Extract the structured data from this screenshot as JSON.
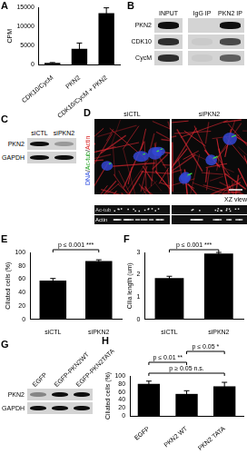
{
  "chart_data": [
    {
      "panel": "A",
      "type": "bar",
      "categories": [
        "CDK10/CycM",
        "PKN2",
        "CDK10/CycM + PKN2"
      ],
      "values": [
        500,
        4200,
        13500
      ],
      "errors": [
        100,
        1500,
        1400
      ],
      "color": "#000000",
      "y_label": "CPM",
      "ylim": [
        0,
        15000
      ],
      "yticks": [
        0,
        5000,
        10000,
        15000
      ],
      "grid": false
    },
    {
      "panel": "E",
      "type": "bar",
      "categories": [
        "siCTL",
        "siPKN2"
      ],
      "values": [
        58,
        87
      ],
      "errors": [
        3,
        2
      ],
      "color": "#000000",
      "y_label": "Ciliated cells (%)",
      "ylim": [
        0,
        100
      ],
      "yticks": [
        0,
        20,
        40,
        60,
        80,
        100
      ],
      "grid": false,
      "annotations": [
        {
          "text": "p ≤ 0.001 ***",
          "from": "siCTL",
          "to": "siPKN2"
        }
      ]
    },
    {
      "panel": "F",
      "type": "bar",
      "categories": [
        "siCTL",
        "siPKN2"
      ],
      "values": [
        1.85,
        2.95
      ],
      "errors": [
        0.08,
        0.05
      ],
      "color": "#000000",
      "y_label": "Cilia length (um)",
      "ylim": [
        0,
        3
      ],
      "yticks": [
        0,
        1,
        2,
        3
      ],
      "grid": false,
      "annotations": [
        {
          "text": "p ≤ 0.001 ***",
          "from": "siCTL",
          "to": "siPKN2"
        }
      ]
    },
    {
      "panel": "H",
      "type": "bar",
      "categories": [
        "EGFP",
        "PKN2 WT",
        "PKN2 TATA"
      ],
      "values": [
        80,
        55,
        74
      ],
      "errors": [
        7,
        8,
        10
      ],
      "color": "#000000",
      "y_label": "Ciliated cells (%)",
      "ylim": [
        0,
        100
      ],
      "yticks": [
        0,
        20,
        40,
        60,
        80,
        100
      ],
      "grid": false,
      "annotations": [
        {
          "text": "p ≥ 0.05 n.s.",
          "from": "EGFP",
          "to": "PKN2 TATA"
        },
        {
          "text": "p ≤ 0.01 **",
          "from": "EGFP",
          "to": "PKN2 WT"
        },
        {
          "text": "p ≤ 0.05 *",
          "from": "PKN2 WT",
          "to": "PKN2 TATA"
        }
      ]
    }
  ],
  "blots": [
    {
      "panel": "B",
      "columns": [
        "INPUT",
        "IgG IP",
        "PKN2 IP"
      ],
      "rows": [
        "PKN2",
        "CDK10",
        "CycM"
      ]
    },
    {
      "panel": "C",
      "columns": [
        "siCTL",
        "siPKN2"
      ],
      "rows": [
        "PKN2",
        "GAPDH"
      ]
    },
    {
      "panel": "G",
      "columns": [
        "EGFP",
        "EGFP-PKN2WT",
        "EGFP-PKN2TATA"
      ],
      "rows": [
        "PKN2",
        "GAPDH"
      ]
    }
  ],
  "micrograph": {
    "panel": "D",
    "conditions": [
      "siCTL",
      "siPKN2"
    ],
    "stain_label_parts": [
      "DNA",
      "/",
      "Ac-tub",
      "/",
      "Actin"
    ],
    "xz_label": "XZ view",
    "xz_channels": [
      "Ac-tub",
      "Actin"
    ]
  }
}
